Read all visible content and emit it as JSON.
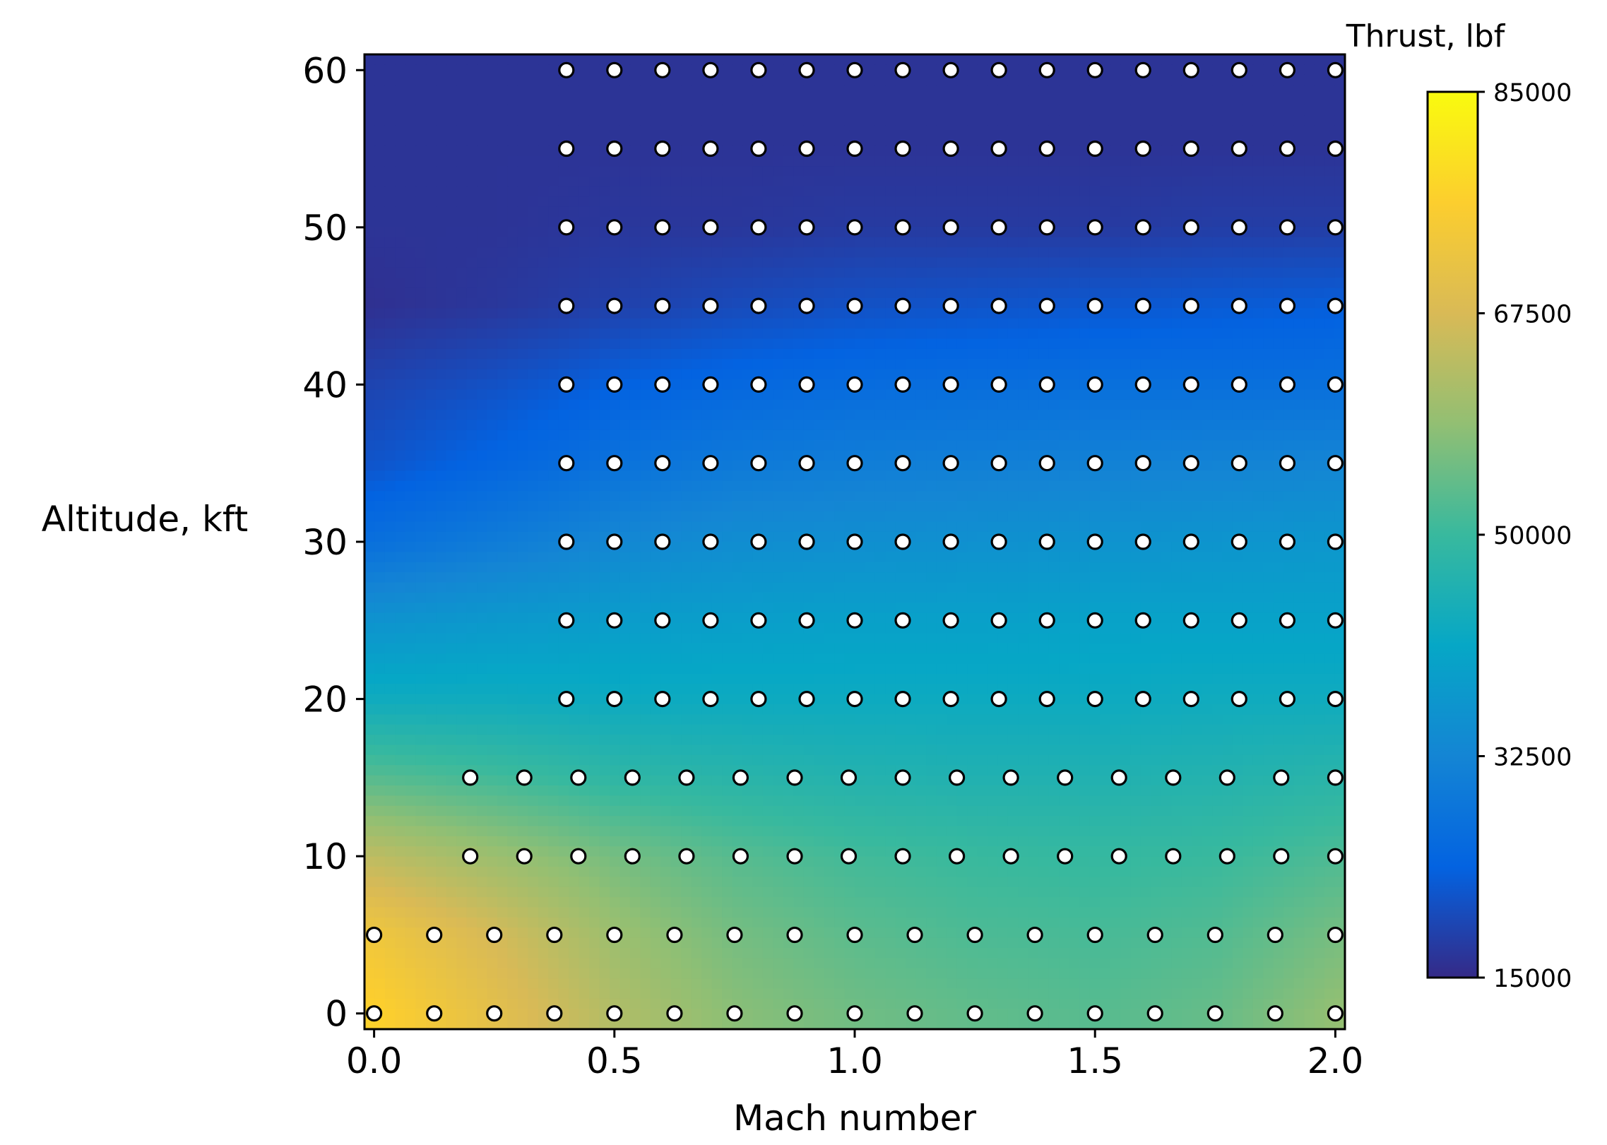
{
  "chart_data": {
    "type": "heatmap",
    "title": "",
    "xlabel": "Mach number",
    "ylabel": "Altitude, kft",
    "xlim": [
      -0.02,
      2.02
    ],
    "ylim": [
      -1,
      61
    ],
    "xticks": [
      0.0,
      0.5,
      1.0,
      1.5,
      2.0
    ],
    "xtick_labels": [
      "0.0",
      "0.5",
      "1.0",
      "1.5",
      "2.0"
    ],
    "yticks": [
      0,
      10,
      20,
      30,
      40,
      50,
      60
    ],
    "ytick_labels": [
      "0",
      "10",
      "20",
      "30",
      "40",
      "50",
      "60"
    ],
    "colorbar": {
      "label": "Thrust, lbf",
      "min": 15000,
      "max": 85000,
      "ticks": [
        15000,
        32500,
        50000,
        67500,
        85000
      ],
      "tick_labels": [
        "15000",
        "32500",
        "50000",
        "67500",
        "85000"
      ],
      "colormap_stops": [
        "#352a87",
        "#0363e1",
        "#1485d4",
        "#06a7c6",
        "#38b99e",
        "#92bf73",
        "#d9ba56",
        "#fcce2e",
        "#f9fb0e"
      ]
    },
    "thrust_field_lbf": {
      "mach": [
        0.0,
        0.25,
        0.5,
        0.75,
        1.0,
        1.25,
        1.5,
        1.75,
        2.0
      ],
      "altitude_kft": [
        0,
        5,
        10,
        15,
        20,
        25,
        30,
        35,
        40,
        45,
        50,
        55,
        60
      ],
      "values": [
        [
          77000,
          70000,
          62500,
          58000,
          55500,
          54000,
          53000,
          54500,
          59000
        ],
        [
          73000,
          67000,
          60000,
          56000,
          53500,
          52000,
          51500,
          52500,
          56000
        ],
        [
          64000,
          60000,
          56000,
          53000,
          51000,
          50000,
          49500,
          50000,
          52000
        ],
        [
          53000,
          51000,
          48500,
          47500,
          46500,
          46000,
          46000,
          46500,
          47500
        ],
        [
          43000,
          43000,
          42500,
          42500,
          42500,
          42500,
          42500,
          43000,
          43000
        ],
        [
          36000,
          37500,
          38500,
          39000,
          39500,
          39500,
          40000,
          40000,
          40000
        ],
        [
          27000,
          30000,
          33000,
          34500,
          35000,
          35500,
          36000,
          36500,
          37000
        ],
        [
          21500,
          24500,
          27500,
          29500,
          30500,
          31000,
          31500,
          32000,
          32500
        ],
        [
          19000,
          21000,
          23500,
          25000,
          26000,
          26500,
          27000,
          27000,
          27000
        ],
        [
          16000,
          17000,
          18500,
          20000,
          21000,
          21500,
          22000,
          22500,
          23000
        ],
        [
          16500,
          16500,
          17000,
          17000,
          17500,
          17500,
          17500,
          18000,
          18000
        ],
        [
          16500,
          16500,
          16500,
          16500,
          16500,
          16500,
          16500,
          16500,
          16500
        ],
        [
          16500,
          16500,
          16500,
          16500,
          16500,
          16500,
          16500,
          16500,
          16500
        ]
      ]
    },
    "sample_points": [
      {
        "altitude": 0,
        "mach": [
          0.0,
          0.125,
          0.25,
          0.375,
          0.5,
          0.625,
          0.75,
          0.875,
          1.0,
          1.125,
          1.25,
          1.375,
          1.5,
          1.625,
          1.75,
          1.875,
          2.0
        ]
      },
      {
        "altitude": 5,
        "mach": [
          0.0,
          0.125,
          0.25,
          0.375,
          0.5,
          0.625,
          0.75,
          0.875,
          1.0,
          1.125,
          1.25,
          1.375,
          1.5,
          1.625,
          1.75,
          1.875,
          2.0
        ]
      },
      {
        "altitude": 10,
        "mach": [
          0.2,
          0.3125,
          0.425,
          0.5375,
          0.65,
          0.7625,
          0.875,
          0.9875,
          1.1,
          1.2125,
          1.325,
          1.4375,
          1.55,
          1.6625,
          1.775,
          1.8875,
          2.0
        ]
      },
      {
        "altitude": 15,
        "mach": [
          0.2,
          0.3125,
          0.425,
          0.5375,
          0.65,
          0.7625,
          0.875,
          0.9875,
          1.1,
          1.2125,
          1.325,
          1.4375,
          1.55,
          1.6625,
          1.775,
          1.8875,
          2.0
        ]
      },
      {
        "altitude": 20,
        "mach": [
          0.4,
          0.5,
          0.6,
          0.7,
          0.8,
          0.9,
          1.0,
          1.1,
          1.2,
          1.3,
          1.4,
          1.5,
          1.6,
          1.7,
          1.8,
          1.9,
          2.0
        ]
      },
      {
        "altitude": 25,
        "mach": [
          0.4,
          0.5,
          0.6,
          0.7,
          0.8,
          0.9,
          1.0,
          1.1,
          1.2,
          1.3,
          1.4,
          1.5,
          1.6,
          1.7,
          1.8,
          1.9,
          2.0
        ]
      },
      {
        "altitude": 30,
        "mach": [
          0.4,
          0.5,
          0.6,
          0.7,
          0.8,
          0.9,
          1.0,
          1.1,
          1.2,
          1.3,
          1.4,
          1.5,
          1.6,
          1.7,
          1.8,
          1.9,
          2.0
        ]
      },
      {
        "altitude": 35,
        "mach": [
          0.4,
          0.5,
          0.6,
          0.7,
          0.8,
          0.9,
          1.0,
          1.1,
          1.2,
          1.3,
          1.4,
          1.5,
          1.6,
          1.7,
          1.8,
          1.9,
          2.0
        ]
      },
      {
        "altitude": 40,
        "mach": [
          0.4,
          0.5,
          0.6,
          0.7,
          0.8,
          0.9,
          1.0,
          1.1,
          1.2,
          1.3,
          1.4,
          1.5,
          1.6,
          1.7,
          1.8,
          1.9,
          2.0
        ]
      },
      {
        "altitude": 45,
        "mach": [
          0.4,
          0.5,
          0.6,
          0.7,
          0.8,
          0.9,
          1.0,
          1.1,
          1.2,
          1.3,
          1.4,
          1.5,
          1.6,
          1.7,
          1.8,
          1.9,
          2.0
        ]
      },
      {
        "altitude": 50,
        "mach": [
          0.4,
          0.5,
          0.6,
          0.7,
          0.8,
          0.9,
          1.0,
          1.1,
          1.2,
          1.3,
          1.4,
          1.5,
          1.6,
          1.7,
          1.8,
          1.9,
          2.0
        ]
      },
      {
        "altitude": 55,
        "mach": [
          0.4,
          0.5,
          0.6,
          0.7,
          0.8,
          0.9,
          1.0,
          1.1,
          1.2,
          1.3,
          1.4,
          1.5,
          1.6,
          1.7,
          1.8,
          1.9,
          2.0
        ]
      },
      {
        "altitude": 60,
        "mach": [
          0.4,
          0.5,
          0.6,
          0.7,
          0.8,
          0.9,
          1.0,
          1.1,
          1.2,
          1.3,
          1.4,
          1.5,
          1.6,
          1.7,
          1.8,
          1.9,
          2.0
        ]
      }
    ],
    "grid": false,
    "legend": "none"
  }
}
